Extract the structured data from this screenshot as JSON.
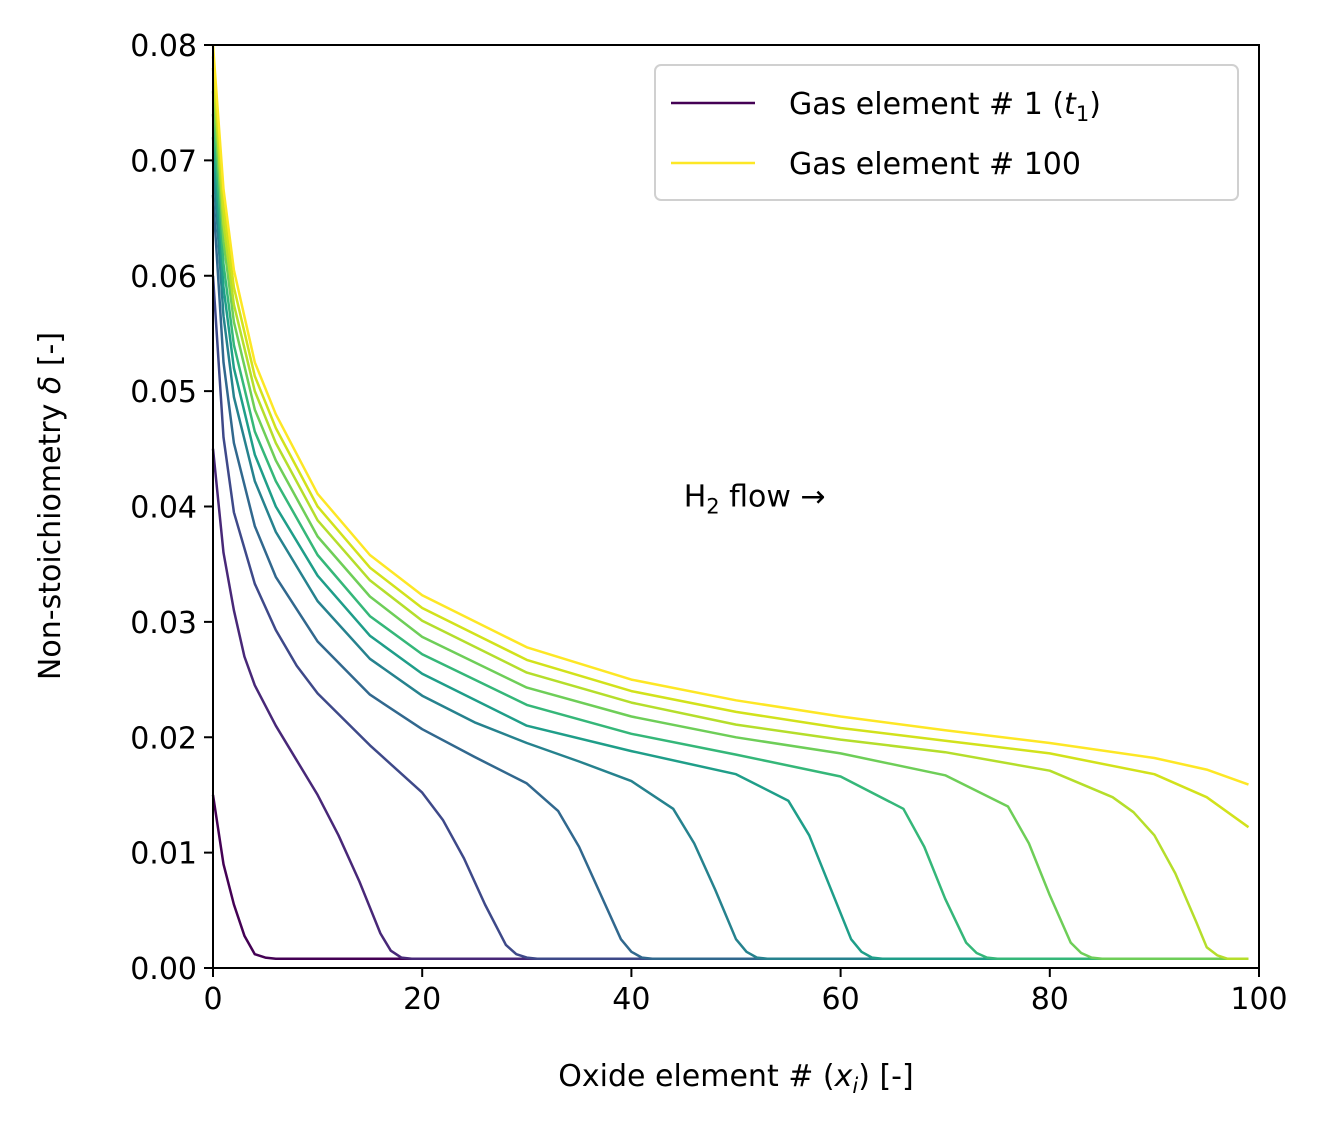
{
  "chart_data": {
    "type": "line",
    "xlabel": "Oxide element # (x_i) [-]",
    "xlabel_parts": {
      "pre": "Oxide element # (",
      "var": "x",
      "sub": "i",
      "post": ") [-]"
    },
    "ylabel": "Non-stoichiometry δ [-]",
    "ylabel_parts": {
      "pre": "Non-stoichiometry ",
      "var": "δ",
      "post": " [-]"
    },
    "xlim": [
      0,
      100
    ],
    "ylim": [
      0,
      0.08
    ],
    "xticks": [
      "0",
      "20",
      "40",
      "60",
      "80",
      "100"
    ],
    "yticks": [
      "0.00",
      "0.01",
      "0.02",
      "0.03",
      "0.04",
      "0.05",
      "0.06",
      "0.07",
      "0.08"
    ],
    "grid": false,
    "legend_position": "top-right",
    "legend": [
      {
        "pre": "Gas element # 1 (",
        "var": "t",
        "sub": "1",
        "post": ")",
        "color": "#440154"
      },
      {
        "pre": "Gas element # 100",
        "var": "",
        "sub": "",
        "post": "",
        "color": "#fde725"
      }
    ],
    "annotation": {
      "pre": "H",
      "sub": "2",
      "post": " flow  →",
      "x": 45,
      "y": 0.04
    },
    "series": [
      {
        "color": "#440154",
        "x": [
          0,
          1,
          2,
          3,
          4,
          5,
          6,
          10,
          20,
          40,
          60,
          80,
          99
        ],
        "y": [
          0.015,
          0.009,
          0.0055,
          0.0028,
          0.0012,
          0.0009,
          0.0008,
          0.0008,
          0.0008,
          0.0008,
          0.0008,
          0.0008,
          0.0008
        ]
      },
      {
        "color": "#482878",
        "x": [
          0,
          1,
          2,
          3,
          4,
          6,
          8,
          10,
          12,
          14,
          16,
          17,
          18,
          19,
          20,
          40,
          60,
          80,
          99
        ],
        "y": [
          0.045,
          0.036,
          0.031,
          0.027,
          0.0245,
          0.021,
          0.018,
          0.015,
          0.0115,
          0.0075,
          0.003,
          0.0015,
          0.0009,
          0.0008,
          0.0008,
          0.0008,
          0.0008,
          0.0008,
          0.0008
        ]
      },
      {
        "color": "#3e4989",
        "x": [
          0,
          1,
          2,
          4,
          6,
          8,
          10,
          15,
          20,
          22,
          24,
          26,
          28,
          29,
          30,
          31,
          40,
          60,
          80,
          99
        ],
        "y": [
          0.06,
          0.046,
          0.0395,
          0.0333,
          0.0293,
          0.0262,
          0.0238,
          0.0193,
          0.0152,
          0.0128,
          0.0095,
          0.0055,
          0.002,
          0.0012,
          0.0009,
          0.0008,
          0.0008,
          0.0008,
          0.0008,
          0.0008
        ]
      },
      {
        "color": "#31688e",
        "x": [
          0,
          1,
          2,
          4,
          6,
          10,
          15,
          20,
          25,
          30,
          33,
          35,
          37,
          39,
          40,
          41,
          42,
          60,
          80,
          99
        ],
        "y": [
          0.067,
          0.0525,
          0.0455,
          0.0383,
          0.0339,
          0.0283,
          0.0237,
          0.0207,
          0.0183,
          0.016,
          0.0136,
          0.0105,
          0.0065,
          0.0025,
          0.0014,
          0.0009,
          0.0008,
          0.0008,
          0.0008,
          0.0008
        ]
      },
      {
        "color": "#26828e",
        "x": [
          0,
          1,
          2,
          4,
          6,
          10,
          15,
          20,
          25,
          30,
          35,
          40,
          44,
          46,
          48,
          50,
          51,
          52,
          53,
          60,
          80,
          99
        ],
        "y": [
          0.07,
          0.0565,
          0.0495,
          0.0422,
          0.0378,
          0.0318,
          0.0268,
          0.0236,
          0.0213,
          0.0195,
          0.0179,
          0.0162,
          0.0138,
          0.0108,
          0.0068,
          0.0025,
          0.0014,
          0.0009,
          0.0008,
          0.0008,
          0.0008,
          0.0008
        ]
      },
      {
        "color": "#1f9e89",
        "x": [
          0,
          1,
          2,
          4,
          6,
          10,
          15,
          20,
          30,
          40,
          50,
          55,
          57,
          59,
          61,
          62,
          63,
          64,
          80,
          99
        ],
        "y": [
          0.072,
          0.059,
          0.052,
          0.0445,
          0.04,
          0.034,
          0.0288,
          0.0255,
          0.021,
          0.0188,
          0.0168,
          0.0145,
          0.0115,
          0.007,
          0.0025,
          0.0014,
          0.0009,
          0.0008,
          0.0008,
          0.0008
        ]
      },
      {
        "color": "#35b779",
        "x": [
          0,
          1,
          2,
          4,
          6,
          10,
          15,
          20,
          30,
          40,
          50,
          60,
          66,
          68,
          70,
          72,
          73,
          74,
          75,
          99
        ],
        "y": [
          0.074,
          0.061,
          0.054,
          0.0465,
          0.0422,
          0.0358,
          0.0305,
          0.0272,
          0.0228,
          0.0203,
          0.0185,
          0.0166,
          0.0138,
          0.0105,
          0.006,
          0.0022,
          0.0013,
          0.0009,
          0.0008,
          0.0008
        ]
      },
      {
        "color": "#6ece58",
        "x": [
          0,
          1,
          2,
          4,
          6,
          10,
          15,
          20,
          30,
          40,
          50,
          60,
          70,
          76,
          78,
          80,
          82,
          83,
          84,
          85,
          86,
          99
        ],
        "y": [
          0.076,
          0.063,
          0.056,
          0.0484,
          0.044,
          0.0374,
          0.0322,
          0.0287,
          0.0243,
          0.0218,
          0.02,
          0.0186,
          0.0167,
          0.014,
          0.0108,
          0.0063,
          0.0022,
          0.0013,
          0.0009,
          0.0008,
          0.0008,
          0.0008
        ]
      },
      {
        "color": "#b5de2b",
        "x": [
          0,
          1,
          2,
          4,
          6,
          10,
          15,
          20,
          30,
          40,
          50,
          60,
          70,
          80,
          86,
          88,
          90,
          92,
          94,
          95,
          96,
          97,
          99
        ],
        "y": [
          0.078,
          0.0645,
          0.0575,
          0.05,
          0.0455,
          0.0388,
          0.0336,
          0.0301,
          0.0256,
          0.023,
          0.0211,
          0.0198,
          0.0187,
          0.0171,
          0.0148,
          0.0135,
          0.0115,
          0.0082,
          0.004,
          0.0018,
          0.0011,
          0.0008,
          0.0008
        ]
      },
      {
        "color": "#d2e21b",
        "x": [
          0,
          1,
          2,
          4,
          6,
          10,
          15,
          20,
          30,
          40,
          50,
          60,
          70,
          80,
          90,
          95,
          99
        ],
        "y": [
          0.079,
          0.066,
          0.059,
          0.0513,
          0.0468,
          0.04,
          0.0347,
          0.0312,
          0.0267,
          0.024,
          0.0222,
          0.0208,
          0.0197,
          0.0186,
          0.0168,
          0.0148,
          0.0122
        ]
      },
      {
        "color": "#fde725",
        "x": [
          0,
          1,
          2,
          4,
          6,
          10,
          15,
          20,
          30,
          40,
          50,
          60,
          70,
          80,
          90,
          95,
          99
        ],
        "y": [
          0.08,
          0.0675,
          0.0605,
          0.0525,
          0.048,
          0.0411,
          0.0358,
          0.0323,
          0.0278,
          0.025,
          0.0232,
          0.0218,
          0.0206,
          0.0195,
          0.0182,
          0.0172,
          0.0159
        ]
      }
    ]
  }
}
